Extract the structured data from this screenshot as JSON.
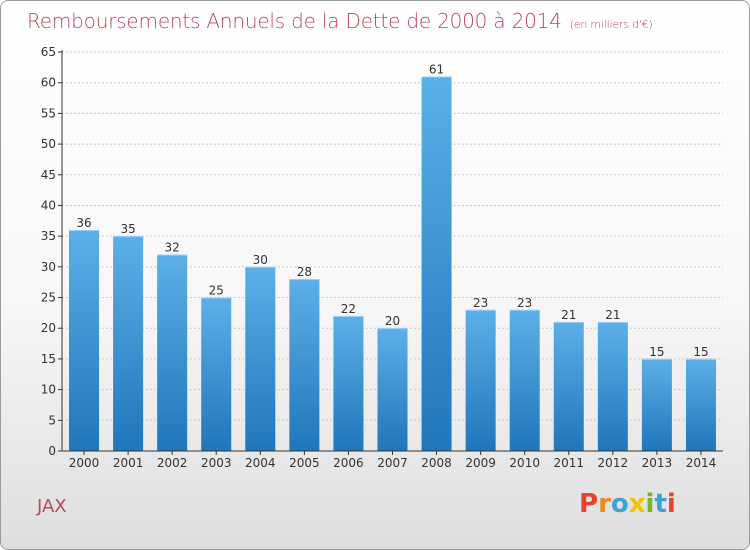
{
  "header": {
    "title": "Remboursements Annuels de la Dette de 2000 à 2014",
    "subtitle": "(en milliers d'€)"
  },
  "footer": {
    "commune": "JAX",
    "logo_text": "Proxiti",
    "logo_colors": [
      "#e8412c",
      "#f08a1c",
      "#3aa3dc",
      "#f2c500",
      "#72b62e",
      "#3aa3dc",
      "#e8412c"
    ]
  },
  "colors": {
    "title": "#b8495b",
    "bar_light": "#5dafe8",
    "bar_dark": "#2176ba",
    "grid": "#c9c9c9",
    "axis": "#333333"
  },
  "chart_data": {
    "type": "bar",
    "categories": [
      "2000",
      "2001",
      "2002",
      "2003",
      "2004",
      "2005",
      "2006",
      "2007",
      "2008",
      "2009",
      "2010",
      "2011",
      "2012",
      "2013",
      "2014"
    ],
    "values": [
      36,
      35,
      32,
      25,
      30,
      28,
      22,
      20,
      61,
      23,
      23,
      21,
      21,
      15,
      15
    ],
    "ylim": [
      0,
      65
    ],
    "yticks": [
      0,
      5,
      10,
      15,
      20,
      25,
      30,
      35,
      40,
      45,
      50,
      55,
      60,
      65
    ],
    "grid": true,
    "data_labels": true
  }
}
